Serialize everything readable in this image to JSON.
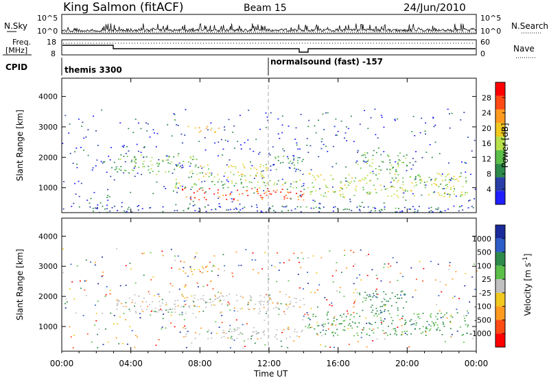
{
  "header": {
    "station": "King Salmon (fitACF)",
    "beam": "Beam 15",
    "date": "24/Jun/2010"
  },
  "top_panel": {
    "left_label": "N.Sky",
    "right_label": "N.Search",
    "yticks": [
      "10^5",
      "10^0"
    ]
  },
  "freq_panel": {
    "left_label_line1": "Freq.",
    "left_label_line2": "[MHz]",
    "yticks": [
      "18",
      "8"
    ],
    "right_label": "Nave",
    "right_yticks": [
      "60",
      "0"
    ]
  },
  "cpid": {
    "label": "CPID",
    "programs": [
      "themis 3300",
      "normalsound (fast) -157"
    ]
  },
  "colors": {
    "power_scale": [
      "#1f1fff",
      "#2a3ea8",
      "#2d8a4a",
      "#5cbf4a",
      "#b8e04a",
      "#f0c81e",
      "#ff9a1e",
      "#ff4a14",
      "#ff0000"
    ],
    "velocity_scale": [
      "#1a2a9a",
      "#2d5ec8",
      "#2d8a4a",
      "#5cbf4a",
      "#c0c0c0",
      "#f0c81e",
      "#ff9a1e",
      "#ff4a14",
      "#ff0000"
    ]
  },
  "chart_data": [
    {
      "type": "heatmap",
      "parameter": "Power",
      "xlabel": "Time UT",
      "ylabel": "Slant Range [km]",
      "xlim": [
        "00:00",
        "24:00"
      ],
      "xticks": [
        "00:00",
        "04:00",
        "08:00",
        "12:00",
        "16:00",
        "20:00",
        "00:00"
      ],
      "ylim": [
        180,
        4600
      ],
      "yticks": [
        "1000",
        "2000",
        "3000",
        "4000"
      ],
      "colorbar_label": "Power [dB]",
      "colorbar_ticks": [
        "4",
        "8",
        "12",
        "16",
        "20",
        "24",
        "28"
      ],
      "colorbar_range": [
        0,
        32
      ],
      "echo_regions": [
        {
          "t_start": 7.3,
          "t_end": 9.2,
          "range_min": 2800,
          "range_max": 3050,
          "level": 20
        },
        {
          "t_start": 3.0,
          "t_end": 8.0,
          "range_min": 1450,
          "range_max": 2100,
          "level": 12
        },
        {
          "t_start": 8.0,
          "t_end": 12.0,
          "range_min": 1350,
          "range_max": 1800,
          "level": 18
        },
        {
          "t_start": 12.0,
          "t_end": 14.0,
          "range_min": 1600,
          "range_max": 2100,
          "level": 10
        },
        {
          "t_start": 6.8,
          "t_end": 14.0,
          "range_min": 600,
          "range_max": 1000,
          "level": 28
        },
        {
          "t_start": 6.5,
          "t_end": 14.0,
          "range_min": 1000,
          "range_max": 1300,
          "level": 14
        },
        {
          "t_start": 14.2,
          "t_end": 23.5,
          "range_min": 700,
          "range_max": 1500,
          "level": 16
        },
        {
          "t_start": 17.0,
          "t_end": 20.0,
          "range_min": 1500,
          "range_max": 2200,
          "level": 12
        },
        {
          "t_start": 0.0,
          "t_end": 24.0,
          "range_min": 200,
          "range_max": 420,
          "level": 6
        }
      ]
    },
    {
      "type": "heatmap",
      "parameter": "Velocity",
      "xlabel": "Time UT",
      "ylabel": "Slant Range [km]",
      "xlim": [
        "00:00",
        "24:00"
      ],
      "xticks": [
        "00:00",
        "04:00",
        "08:00",
        "12:00",
        "16:00",
        "20:00",
        "00:00"
      ],
      "ylim": [
        180,
        4600
      ],
      "yticks": [
        "1000",
        "2000",
        "3000",
        "4000"
      ],
      "colorbar_label": "Velocity [m s^-1]",
      "colorbar_ticks": [
        "1000",
        "500",
        "100",
        "25",
        "-25",
        "-100",
        "-500",
        "-1000"
      ],
      "echo_regions": [
        {
          "t_start": 7.3,
          "t_end": 9.2,
          "range_min": 2800,
          "range_max": 3050,
          "velocity": -100
        },
        {
          "t_start": 3.0,
          "t_end": 12.0,
          "range_min": 1450,
          "range_max": 2100,
          "velocity": 0
        },
        {
          "t_start": 12.0,
          "t_end": 14.0,
          "range_min": 1600,
          "range_max": 2100,
          "velocity": 0
        },
        {
          "t_start": 6.8,
          "t_end": 14.0,
          "range_min": 600,
          "range_max": 1000,
          "velocity": 0
        },
        {
          "t_start": 14.2,
          "t_end": 23.5,
          "range_min": 700,
          "range_max": 1500,
          "velocity": 100
        },
        {
          "t_start": 17.0,
          "t_end": 20.0,
          "range_min": 1500,
          "range_max": 2200,
          "velocity": 200
        }
      ]
    }
  ]
}
